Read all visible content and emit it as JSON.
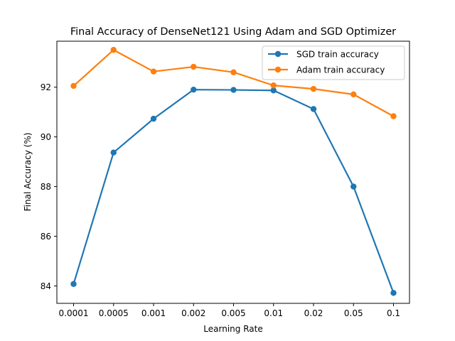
{
  "chart_data": {
    "type": "line",
    "title": "Final Accuracy of DenseNet121 Using Adam and SGD Optimizer",
    "xlabel": "Learning Rate",
    "ylabel": "Final Accuracy (%)",
    "categories": [
      "0.0001",
      "0.0005",
      "0.001",
      "0.002",
      "0.005",
      "0.01",
      "0.02",
      "0.05",
      "0.1"
    ],
    "ylim": [
      83.3,
      93.85
    ],
    "yticks": [
      84,
      86,
      88,
      90,
      92
    ],
    "grid": false,
    "legend_position": "top-right",
    "series": [
      {
        "name": "SGD train accuracy",
        "color": "#1f77b4",
        "values": [
          84.08,
          89.37,
          90.73,
          91.9,
          91.89,
          91.87,
          91.12,
          88.0,
          83.72
        ]
      },
      {
        "name": "Adam train accuracy",
        "color": "#ff7f0e",
        "values": [
          92.05,
          93.5,
          92.63,
          92.82,
          92.6,
          92.07,
          91.93,
          91.71,
          90.83
        ]
      }
    ]
  }
}
